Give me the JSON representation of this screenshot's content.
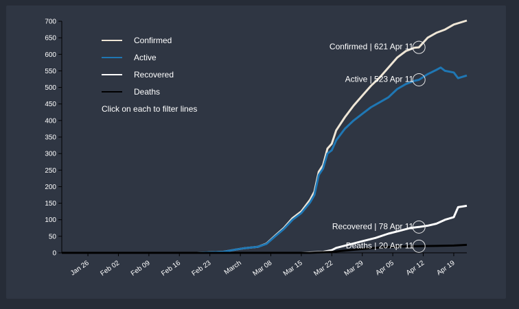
{
  "chart_data": {
    "type": "line",
    "ylim": [
      0,
      700
    ],
    "y_ticks": [
      0,
      50,
      100,
      150,
      200,
      250,
      300,
      350,
      400,
      450,
      500,
      550,
      600,
      650,
      700
    ],
    "x_range": [
      "2020-01-20",
      "2020-04-22"
    ],
    "x_ticks": [
      {
        "date": "2020-01-26",
        "label": "Jan 26"
      },
      {
        "date": "2020-02-02",
        "label": "Feb 02"
      },
      {
        "date": "2020-02-09",
        "label": "Feb 09"
      },
      {
        "date": "2020-02-16",
        "label": "Feb 16"
      },
      {
        "date": "2020-02-23",
        "label": "Feb 23"
      },
      {
        "date": "2020-03-01",
        "label": "March"
      },
      {
        "date": "2020-03-08",
        "label": "Mar 08"
      },
      {
        "date": "2020-03-15",
        "label": "Mar 15"
      },
      {
        "date": "2020-03-22",
        "label": "Mar 22"
      },
      {
        "date": "2020-03-29",
        "label": "Mar 29"
      },
      {
        "date": "2020-04-05",
        "label": "Apr 05"
      },
      {
        "date": "2020-04-12",
        "label": "Apr 12"
      },
      {
        "date": "2020-04-19",
        "label": "Apr 19"
      }
    ],
    "legend_placement": "top-left",
    "legend_note": "Click on each to filter lines",
    "series": [
      {
        "name": "Confirmed",
        "color": "#efe6d6",
        "points": [
          [
            "2020-01-20",
            0
          ],
          [
            "2020-02-20",
            0
          ],
          [
            "2020-02-26",
            3
          ],
          [
            "2020-02-29",
            10
          ],
          [
            "2020-03-02",
            14
          ],
          [
            "2020-03-05",
            18
          ],
          [
            "2020-03-07",
            28
          ],
          [
            "2020-03-09",
            52
          ],
          [
            "2020-03-11",
            75
          ],
          [
            "2020-03-13",
            105
          ],
          [
            "2020-03-15",
            125
          ],
          [
            "2020-03-17",
            160
          ],
          [
            "2020-03-18",
            185
          ],
          [
            "2020-03-19",
            245
          ],
          [
            "2020-03-20",
            265
          ],
          [
            "2020-03-21",
            315
          ],
          [
            "2020-03-22",
            330
          ],
          [
            "2020-03-23",
            370
          ],
          [
            "2020-03-25",
            410
          ],
          [
            "2020-03-27",
            445
          ],
          [
            "2020-03-29",
            475
          ],
          [
            "2020-03-31",
            505
          ],
          [
            "2020-04-02",
            530
          ],
          [
            "2020-04-04",
            560
          ],
          [
            "2020-04-06",
            590
          ],
          [
            "2020-04-08",
            610
          ],
          [
            "2020-04-10",
            620
          ],
          [
            "2020-04-11",
            621
          ],
          [
            "2020-04-13",
            650
          ],
          [
            "2020-04-15",
            665
          ],
          [
            "2020-04-17",
            675
          ],
          [
            "2020-04-19",
            690
          ],
          [
            "2020-04-22",
            702
          ]
        ]
      },
      {
        "name": "Active",
        "color": "#1f77b4",
        "points": [
          [
            "2020-01-20",
            0
          ],
          [
            "2020-02-20",
            0
          ],
          [
            "2020-02-26",
            3
          ],
          [
            "2020-02-29",
            10
          ],
          [
            "2020-03-02",
            14
          ],
          [
            "2020-03-05",
            18
          ],
          [
            "2020-03-07",
            27
          ],
          [
            "2020-03-09",
            50
          ],
          [
            "2020-03-11",
            72
          ],
          [
            "2020-03-13",
            100
          ],
          [
            "2020-03-15",
            120
          ],
          [
            "2020-03-17",
            152
          ],
          [
            "2020-03-18",
            175
          ],
          [
            "2020-03-19",
            235
          ],
          [
            "2020-03-20",
            255
          ],
          [
            "2020-03-21",
            300
          ],
          [
            "2020-03-22",
            310
          ],
          [
            "2020-03-23",
            340
          ],
          [
            "2020-03-25",
            375
          ],
          [
            "2020-03-27",
            400
          ],
          [
            "2020-03-29",
            420
          ],
          [
            "2020-03-31",
            440
          ],
          [
            "2020-04-02",
            455
          ],
          [
            "2020-04-04",
            470
          ],
          [
            "2020-04-06",
            495
          ],
          [
            "2020-04-08",
            510
          ],
          [
            "2020-04-10",
            520
          ],
          [
            "2020-04-11",
            523
          ],
          [
            "2020-04-13",
            540
          ],
          [
            "2020-04-15",
            553
          ],
          [
            "2020-04-16",
            560
          ],
          [
            "2020-04-17",
            550
          ],
          [
            "2020-04-19",
            545
          ],
          [
            "2020-04-20",
            528
          ],
          [
            "2020-04-22",
            536
          ]
        ]
      },
      {
        "name": "Recovered",
        "color": "#ffffff",
        "points": [
          [
            "2020-01-20",
            0
          ],
          [
            "2020-03-15",
            0
          ],
          [
            "2020-03-20",
            3
          ],
          [
            "2020-03-22",
            8
          ],
          [
            "2020-03-23",
            15
          ],
          [
            "2020-03-26",
            25
          ],
          [
            "2020-03-29",
            35
          ],
          [
            "2020-04-01",
            45
          ],
          [
            "2020-04-04",
            58
          ],
          [
            "2020-04-07",
            68
          ],
          [
            "2020-04-09",
            75
          ],
          [
            "2020-04-11",
            78
          ],
          [
            "2020-04-13",
            82
          ],
          [
            "2020-04-15",
            88
          ],
          [
            "2020-04-17",
            100
          ],
          [
            "2020-04-19",
            108
          ],
          [
            "2020-04-20",
            138
          ],
          [
            "2020-04-22",
            142
          ]
        ]
      },
      {
        "name": "Deaths",
        "color": "#000000",
        "points": [
          [
            "2020-01-20",
            0
          ],
          [
            "2020-03-17",
            0
          ],
          [
            "2020-03-22",
            3
          ],
          [
            "2020-03-26",
            8
          ],
          [
            "2020-03-30",
            13
          ],
          [
            "2020-04-03",
            17
          ],
          [
            "2020-04-07",
            19
          ],
          [
            "2020-04-11",
            20
          ],
          [
            "2020-04-15",
            21
          ],
          [
            "2020-04-19",
            22
          ],
          [
            "2020-04-22",
            24
          ]
        ]
      }
    ],
    "annotations": [
      {
        "series": "Confirmed",
        "date": "2020-04-11",
        "value": 621,
        "label": "Confirmed | 621 Apr 11"
      },
      {
        "series": "Active",
        "date": "2020-04-11",
        "value": 523,
        "label": "Active | 523 Apr 11"
      },
      {
        "series": "Recovered",
        "date": "2020-04-11",
        "value": 78,
        "label": "Recovered | 78 Apr 11"
      },
      {
        "series": "Deaths",
        "date": "2020-04-11",
        "value": 20,
        "label": "Deaths | 20 Apr 11"
      }
    ]
  }
}
